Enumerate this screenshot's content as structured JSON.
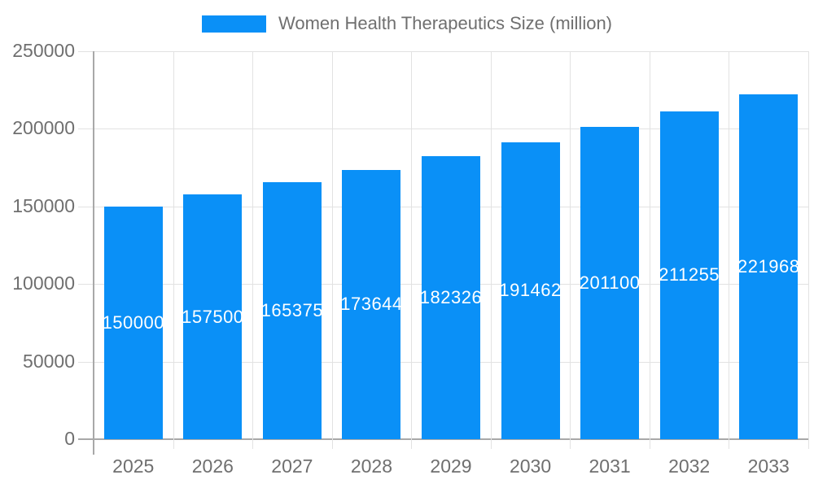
{
  "legend": {
    "label": "Women Health Therapeutics Size (million)"
  },
  "chart_data": {
    "type": "bar",
    "title": "",
    "categories": [
      "2025",
      "2026",
      "2027",
      "2028",
      "2029",
      "2030",
      "2031",
      "2032",
      "2033"
    ],
    "series": [
      {
        "name": "Women Health Therapeutics Size (million)",
        "values": [
          150000,
          157500,
          165375,
          173644,
          182326,
          191462,
          201100,
          211255,
          221968
        ]
      }
    ],
    "value_labels": [
      "150000",
      "157500",
      "165375",
      "173644",
      "182326",
      "191462",
      "201100",
      "211255",
      "221968"
    ],
    "xlabel": "",
    "ylabel": "",
    "ylim": [
      0,
      250000
    ],
    "yticks": [
      0,
      50000,
      100000,
      150000,
      200000,
      250000
    ],
    "ytick_labels": [
      "0",
      "50000",
      "100000",
      "150000",
      "200000",
      "250000"
    ],
    "grid": true,
    "legend_position": "top-center",
    "bar_color": "#0a90f7",
    "grid_color": "#e2e2e2",
    "axis_line_color": "#a8a8a8",
    "tick_label_color": "#6f6f6f",
    "value_label_color": "#ffffff",
    "background_color": "#ffffff"
  }
}
